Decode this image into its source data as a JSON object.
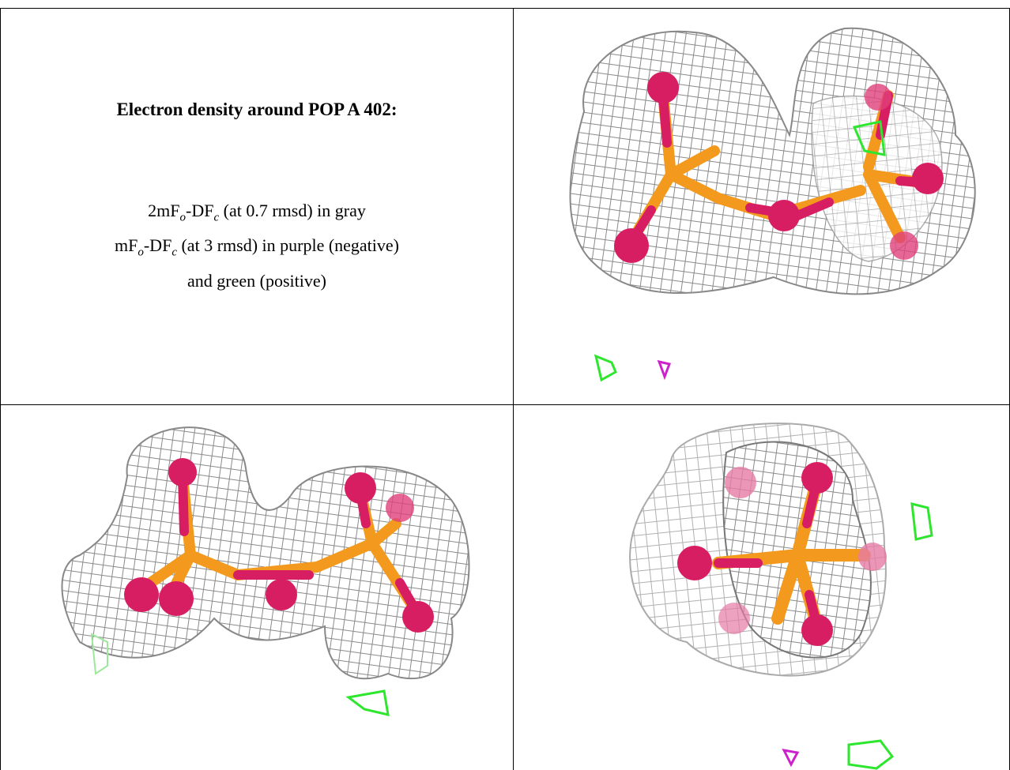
{
  "caption": {
    "title": "Electron density around POP A 402:",
    "lines": [
      [
        "2mF",
        "o",
        "-DF",
        "c",
        " (at 0.7 rmsd) in gray"
      ],
      [
        "mF",
        "o",
        "-DF",
        "c",
        " (at 3 rmsd) in purple (negative)"
      ],
      [
        "and green (positive)"
      ]
    ]
  }
}
